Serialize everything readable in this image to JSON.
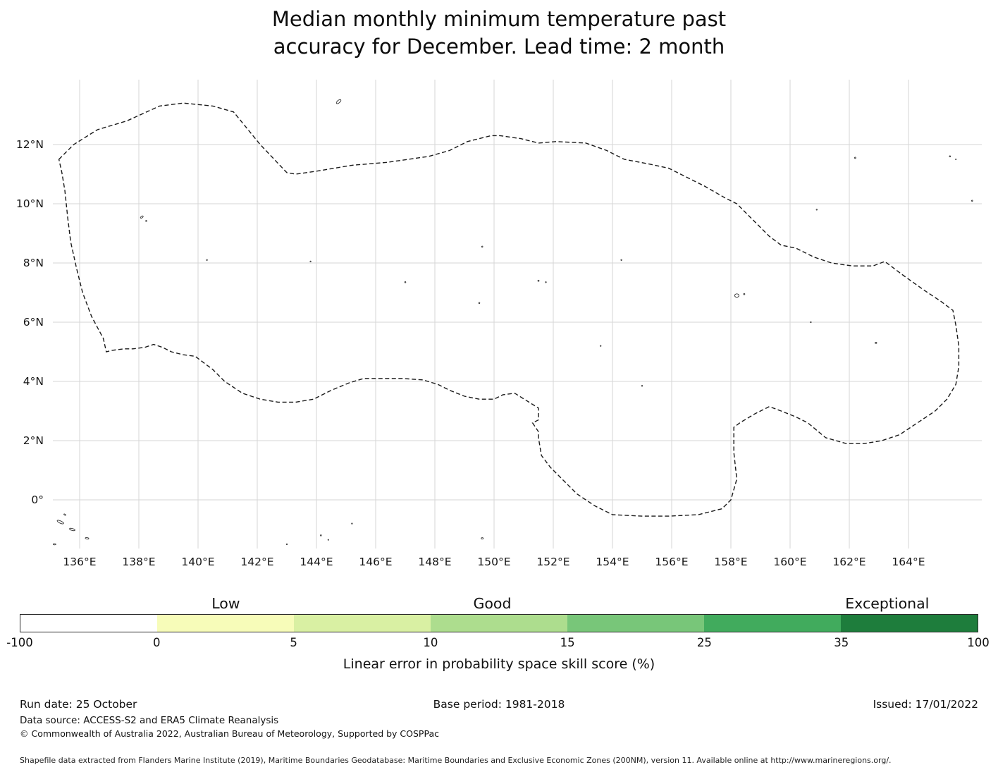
{
  "title": {
    "line1": "Median monthly minimum temperature past",
    "line2": "accuracy for December. Lead time: 2 month"
  },
  "footer": {
    "run_date": "Run date: 25 October",
    "base_period": "Base period: 1981-2018",
    "issued": "Issued: 17/01/2022",
    "data_source": "Data source: ACCESS-S2 and ERA5 Climate Reanalysis",
    "copyright": "© Commonwealth of Australia 2022, Australian Bureau of Meteorology, Supported by COSPPac",
    "shapefile": "Shapefile data extracted from Flanders Marine Institute (2019), Maritime Boundaries Geodatabase: Maritime Boundaries and Exclusive Economic Zones (200NM), version 11. Available online at http://www.marineregions.org/."
  },
  "chart_data": {
    "type": "map",
    "title": "Median monthly minimum temperature past accuracy for December. Lead time: 2 month",
    "x_ticks": [
      "136°E",
      "138°E",
      "140°E",
      "142°E",
      "144°E",
      "146°E",
      "148°E",
      "150°E",
      "152°E",
      "154°E",
      "156°E",
      "158°E",
      "160°E",
      "162°E",
      "164°E"
    ],
    "x_tick_lons": [
      136,
      138,
      140,
      142,
      144,
      146,
      148,
      150,
      152,
      154,
      156,
      158,
      160,
      162,
      164
    ],
    "y_ticks": [
      "12°N",
      "10°N",
      "8°N",
      "6°N",
      "4°N",
      "2°N",
      "0°"
    ],
    "y_tick_lats": [
      12,
      10,
      8,
      6,
      4,
      2,
      0
    ],
    "grid": true,
    "boundary_style": "dashed",
    "boundary_lonlat": [
      [
        135.3,
        11.5
      ],
      [
        135.8,
        12.0
      ],
      [
        136.6,
        12.5
      ],
      [
        137.6,
        12.8
      ],
      [
        138.7,
        13.3
      ],
      [
        139.5,
        13.4
      ],
      [
        140.5,
        13.3
      ],
      [
        141.2,
        13.1
      ],
      [
        142.1,
        12.0
      ],
      [
        143.0,
        11.05
      ],
      [
        143.3,
        11.0
      ],
      [
        144.0,
        11.1
      ],
      [
        145.2,
        11.3
      ],
      [
        146.4,
        11.4
      ],
      [
        147.8,
        11.6
      ],
      [
        148.5,
        11.8
      ],
      [
        149.1,
        12.1
      ],
      [
        149.9,
        12.3
      ],
      [
        150.2,
        12.3
      ],
      [
        150.9,
        12.2
      ],
      [
        151.5,
        12.05
      ],
      [
        152.1,
        12.1
      ],
      [
        153.1,
        12.05
      ],
      [
        153.8,
        11.8
      ],
      [
        154.4,
        11.5
      ],
      [
        155.2,
        11.35
      ],
      [
        155.9,
        11.2
      ],
      [
        156.5,
        10.9
      ],
      [
        157.1,
        10.6
      ],
      [
        157.8,
        10.2
      ],
      [
        158.2,
        10.0
      ],
      [
        158.8,
        9.4
      ],
      [
        159.3,
        8.9
      ],
      [
        159.7,
        8.6
      ],
      [
        160.2,
        8.5
      ],
      [
        160.8,
        8.2
      ],
      [
        161.4,
        8.0
      ],
      [
        162.1,
        7.9
      ],
      [
        162.8,
        7.9
      ],
      [
        163.2,
        8.05
      ],
      [
        163.8,
        7.6
      ],
      [
        164.5,
        7.1
      ],
      [
        165.1,
        6.7
      ],
      [
        165.5,
        6.4
      ],
      [
        165.6,
        5.9
      ],
      [
        165.7,
        5.2
      ],
      [
        165.7,
        4.5
      ],
      [
        165.6,
        3.9
      ],
      [
        165.3,
        3.4
      ],
      [
        164.9,
        3.0
      ],
      [
        164.3,
        2.6
      ],
      [
        163.7,
        2.2
      ],
      [
        163.1,
        2.0
      ],
      [
        162.5,
        1.9
      ],
      [
        161.9,
        1.9
      ],
      [
        161.2,
        2.1
      ],
      [
        160.6,
        2.6
      ],
      [
        160.2,
        2.8
      ],
      [
        159.7,
        3.0
      ],
      [
        159.3,
        3.15
      ],
      [
        158.8,
        2.9
      ],
      [
        158.3,
        2.6
      ],
      [
        158.1,
        2.45
      ],
      [
        158.1,
        1.6
      ],
      [
        158.2,
        0.7
      ],
      [
        158.0,
        0.0
      ],
      [
        157.7,
        -0.3
      ],
      [
        156.9,
        -0.5
      ],
      [
        155.9,
        -0.55
      ],
      [
        155.0,
        -0.55
      ],
      [
        154.0,
        -0.5
      ],
      [
        153.4,
        -0.2
      ],
      [
        152.8,
        0.2
      ],
      [
        152.4,
        0.6
      ],
      [
        151.9,
        1.1
      ],
      [
        151.6,
        1.5
      ],
      [
        151.5,
        2.1
      ],
      [
        151.5,
        2.3
      ],
      [
        151.3,
        2.6
      ],
      [
        151.5,
        2.7
      ],
      [
        151.5,
        3.1
      ],
      [
        150.7,
        3.6
      ],
      [
        150.3,
        3.55
      ],
      [
        150.0,
        3.4
      ],
      [
        149.5,
        3.4
      ],
      [
        149.0,
        3.5
      ],
      [
        148.5,
        3.7
      ],
      [
        148.1,
        3.9
      ],
      [
        147.6,
        4.05
      ],
      [
        146.9,
        4.1
      ],
      [
        146.2,
        4.1
      ],
      [
        145.6,
        4.1
      ],
      [
        145.1,
        3.95
      ],
      [
        144.5,
        3.7
      ],
      [
        143.9,
        3.4
      ],
      [
        143.3,
        3.3
      ],
      [
        142.7,
        3.3
      ],
      [
        142.1,
        3.4
      ],
      [
        141.5,
        3.6
      ],
      [
        140.9,
        4.0
      ],
      [
        140.5,
        4.4
      ],
      [
        140.1,
        4.7
      ],
      [
        139.9,
        4.85
      ],
      [
        139.5,
        4.9
      ],
      [
        139.1,
        5.0
      ],
      [
        138.8,
        5.15
      ],
      [
        138.5,
        5.25
      ],
      [
        138.2,
        5.15
      ],
      [
        137.8,
        5.1
      ],
      [
        137.5,
        5.1
      ],
      [
        137.1,
        5.05
      ],
      [
        136.9,
        5.0
      ],
      [
        136.8,
        5.45
      ],
      [
        136.4,
        6.2
      ],
      [
        136.1,
        7.0
      ],
      [
        135.9,
        7.8
      ],
      [
        135.7,
        8.7
      ],
      [
        135.6,
        9.5
      ],
      [
        135.5,
        10.45
      ],
      [
        135.4,
        11.05
      ]
    ],
    "islands": [
      {
        "lon": 144.75,
        "lat": 13.45,
        "rx": 4,
        "ry": 1.8,
        "rot": -40
      },
      {
        "lon": 138.1,
        "lat": 9.55,
        "rx": 2.2,
        "ry": 1.1,
        "rot": -35
      },
      {
        "lon": 138.25,
        "lat": 9.42,
        "rx": 0.8,
        "ry": 0.8
      },
      {
        "lon": 140.3,
        "lat": 8.1,
        "rx": 0.7,
        "ry": 0.7
      },
      {
        "lon": 143.8,
        "lat": 8.05,
        "rx": 0.7,
        "ry": 0.7
      },
      {
        "lon": 147.0,
        "lat": 7.35,
        "rx": 0.8,
        "ry": 0.8
      },
      {
        "lon": 149.6,
        "lat": 8.55,
        "rx": 0.8,
        "ry": 0.8
      },
      {
        "lon": 149.5,
        "lat": 6.65,
        "rx": 0.8,
        "ry": 0.8
      },
      {
        "lon": 151.5,
        "lat": 7.4,
        "rx": 0.9,
        "ry": 0.9
      },
      {
        "lon": 151.75,
        "lat": 7.35,
        "rx": 0.7,
        "ry": 0.7
      },
      {
        "lon": 153.6,
        "lat": 5.2,
        "rx": 0.7,
        "ry": 0.7
      },
      {
        "lon": 154.3,
        "lat": 8.1,
        "rx": 0.7,
        "ry": 0.7
      },
      {
        "lon": 155.0,
        "lat": 3.85,
        "rx": 0.7,
        "ry": 0.7
      },
      {
        "lon": 158.2,
        "lat": 6.9,
        "rx": 3,
        "ry": 2.4,
        "ring": true
      },
      {
        "lon": 158.45,
        "lat": 6.95,
        "rx": 0.9,
        "ry": 0.9
      },
      {
        "lon": 160.7,
        "lat": 6.0,
        "rx": 0.7,
        "ry": 0.7
      },
      {
        "lon": 160.9,
        "lat": 9.8,
        "rx": 0.7,
        "ry": 0.7
      },
      {
        "lon": 162.2,
        "lat": 11.55,
        "rx": 0.9,
        "ry": 0.9
      },
      {
        "lon": 162.9,
        "lat": 5.3,
        "rx": 1.2,
        "ry": 0.9
      },
      {
        "lon": 165.4,
        "lat": 11.6,
        "rx": 0.8,
        "ry": 0.8
      },
      {
        "lon": 165.6,
        "lat": 11.5,
        "rx": 0.6,
        "ry": 0.6
      },
      {
        "lon": 166.15,
        "lat": 10.1,
        "rx": 0.8,
        "ry": 0.8
      },
      {
        "lon": 135.35,
        "lat": -0.75,
        "rx": 5,
        "ry": 1.6,
        "rot": 25
      },
      {
        "lon": 135.75,
        "lat": -1.0,
        "rx": 4,
        "ry": 1.4,
        "rot": 15
      },
      {
        "lon": 136.25,
        "lat": -1.3,
        "rx": 2.5,
        "ry": 1.0,
        "rot": 10
      },
      {
        "lon": 135.15,
        "lat": -1.5,
        "rx": 2,
        "ry": 0.8
      },
      {
        "lon": 135.5,
        "lat": -0.5,
        "rx": 1.5,
        "ry": 0.7,
        "rot": 30
      },
      {
        "lon": 143.0,
        "lat": -1.5,
        "rx": 0.7,
        "ry": 0.7
      },
      {
        "lon": 144.15,
        "lat": -1.2,
        "rx": 0.8,
        "ry": 0.8
      },
      {
        "lon": 144.4,
        "lat": -1.35,
        "rx": 0.6,
        "ry": 0.6
      },
      {
        "lon": 145.2,
        "lat": -0.8,
        "rx": 0.7,
        "ry": 0.7
      },
      {
        "lon": 149.6,
        "lat": -1.3,
        "rx": 1.4,
        "ry": 1.0,
        "ring": true
      }
    ],
    "colorbar": {
      "label": "Linear error in probability space skill score (%)",
      "bounds": [
        "-100",
        "0",
        "5",
        "10",
        "15",
        "25",
        "35",
        "100"
      ],
      "colors": [
        "#ffffff",
        "#f7fcb9",
        "#d9f0a3",
        "#addd8e",
        "#78c679",
        "#41ab5d",
        "#1e7d3c"
      ],
      "categories": [
        "Low",
        "Good",
        "Exceptional"
      ],
      "category_positions_pct": [
        21.5,
        49.3,
        90.5
      ]
    }
  }
}
